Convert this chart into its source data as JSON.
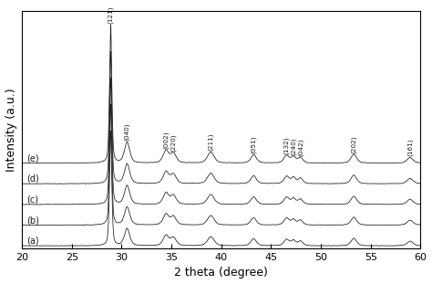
{
  "x_min": 20,
  "x_max": 60,
  "xlabel": "2 theta (degree)",
  "ylabel": "Intensity (a.u.)",
  "curve_labels": [
    "(a)",
    "(b)",
    "(c)",
    "(d)",
    "(e)"
  ],
  "offsets": [
    0.0,
    0.18,
    0.36,
    0.54,
    0.72
  ],
  "peak_positions": [
    28.9,
    30.55,
    34.45,
    35.2,
    38.95,
    43.25,
    46.55,
    47.25,
    47.95,
    53.3,
    58.95
  ],
  "peak_widths": [
    0.12,
    0.28,
    0.3,
    0.3,
    0.35,
    0.3,
    0.28,
    0.25,
    0.25,
    0.3,
    0.32
  ],
  "peak_heights": [
    1.0,
    0.15,
    0.09,
    0.07,
    0.08,
    0.06,
    0.055,
    0.045,
    0.04,
    0.065,
    0.04
  ],
  "peak_label_info": [
    {
      "x": 28.9,
      "label": "(121)",
      "xtext": 28.9
    },
    {
      "x": 30.55,
      "label": "(040)",
      "xtext": 30.55
    },
    {
      "x": 34.45,
      "label": "(002)",
      "xtext": 34.45
    },
    {
      "x": 35.2,
      "label": "(220)",
      "xtext": 35.2
    },
    {
      "x": 38.95,
      "label": "(211)",
      "xtext": 38.95
    },
    {
      "x": 43.25,
      "label": "(051)",
      "xtext": 43.25
    },
    {
      "x": 46.55,
      "label": "(132)",
      "xtext": 46.55
    },
    {
      "x": 47.25,
      "label": "(240)",
      "xtext": 47.25
    },
    {
      "x": 47.95,
      "label": "(042)",
      "xtext": 47.95
    },
    {
      "x": 53.3,
      "label": "(202)",
      "xtext": 53.3
    },
    {
      "x": 58.95,
      "label": "(161)",
      "xtext": 58.95
    }
  ],
  "xticks": [
    20,
    25,
    30,
    35,
    40,
    45,
    50,
    55,
    60
  ],
  "line_color": "#1a1a1a",
  "background_color": "#ffffff",
  "fig_width": 4.74,
  "fig_height": 3.11,
  "dpi": 100,
  "noise_std": 0.003,
  "baseline": 0.003
}
